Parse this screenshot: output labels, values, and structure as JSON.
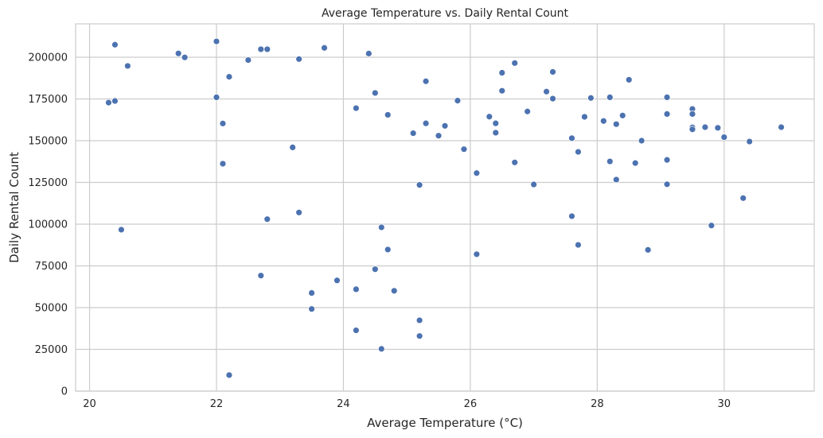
{
  "chart_data": {
    "type": "scatter",
    "title": "Average Temperature vs. Daily Rental Count",
    "xlabel": "Average Temperature (°C)",
    "ylabel": "Daily Rental Count",
    "xlim": [
      19.78,
      31.42
    ],
    "ylim": [
      0,
      220000
    ],
    "x_ticks": [
      20,
      22,
      24,
      26,
      28,
      30
    ],
    "y_ticks": [
      0,
      25000,
      50000,
      75000,
      100000,
      125000,
      150000,
      175000,
      200000
    ],
    "grid": true,
    "point_color": "#4c72b0",
    "points": [
      [
        20.3,
        172800
      ],
      [
        20.4,
        173800
      ],
      [
        20.4,
        207500
      ],
      [
        20.5,
        96700
      ],
      [
        20.6,
        194800
      ],
      [
        21.4,
        202300
      ],
      [
        21.5,
        199900
      ],
      [
        22.0,
        209500
      ],
      [
        22.0,
        176000
      ],
      [
        22.1,
        160300
      ],
      [
        22.1,
        136200
      ],
      [
        22.2,
        188300
      ],
      [
        22.2,
        9600
      ],
      [
        22.5,
        198300
      ],
      [
        22.7,
        204800
      ],
      [
        22.7,
        69200
      ],
      [
        22.8,
        204800
      ],
      [
        22.8,
        103000
      ],
      [
        23.2,
        146000
      ],
      [
        23.3,
        198900
      ],
      [
        23.3,
        107000
      ],
      [
        23.5,
        58800
      ],
      [
        23.5,
        49200
      ],
      [
        23.7,
        205600
      ],
      [
        23.9,
        66300
      ],
      [
        24.2,
        169500
      ],
      [
        24.2,
        61000
      ],
      [
        24.2,
        36400
      ],
      [
        24.4,
        202200
      ],
      [
        24.5,
        178600
      ],
      [
        24.5,
        73000
      ],
      [
        24.6,
        98100
      ],
      [
        24.6,
        25300
      ],
      [
        24.7,
        165500
      ],
      [
        24.7,
        84800
      ],
      [
        24.8,
        60100
      ],
      [
        25.1,
        154500
      ],
      [
        25.2,
        123500
      ],
      [
        25.2,
        42400
      ],
      [
        25.2,
        33000
      ],
      [
        25.3,
        185600
      ],
      [
        25.3,
        160400
      ],
      [
        25.5,
        153000
      ],
      [
        25.6,
        158900
      ],
      [
        25.8,
        174000
      ],
      [
        25.9,
        144900
      ],
      [
        26.1,
        130600
      ],
      [
        26.1,
        82000
      ],
      [
        26.3,
        164400
      ],
      [
        26.4,
        160400
      ],
      [
        26.4,
        154800
      ],
      [
        26.5,
        190700
      ],
      [
        26.5,
        179900
      ],
      [
        26.7,
        196500
      ],
      [
        26.7,
        137000
      ],
      [
        26.9,
        167500
      ],
      [
        27.0,
        123800
      ],
      [
        27.2,
        179400
      ],
      [
        27.3,
        191200
      ],
      [
        27.3,
        175200
      ],
      [
        27.6,
        151500
      ],
      [
        27.6,
        104800
      ],
      [
        27.7,
        143300
      ],
      [
        27.7,
        87600
      ],
      [
        27.8,
        164300
      ],
      [
        27.9,
        175600
      ],
      [
        28.1,
        161800
      ],
      [
        28.2,
        176000
      ],
      [
        28.2,
        137600
      ],
      [
        28.3,
        159900
      ],
      [
        28.3,
        126700
      ],
      [
        28.4,
        165100
      ],
      [
        28.5,
        186500
      ],
      [
        28.6,
        136600
      ],
      [
        28.7,
        150000
      ],
      [
        28.8,
        84600
      ],
      [
        29.1,
        176000
      ],
      [
        29.1,
        166000
      ],
      [
        29.1,
        138500
      ],
      [
        29.1,
        123900
      ],
      [
        29.5,
        169000
      ],
      [
        29.5,
        166000
      ],
      [
        29.5,
        158000
      ],
      [
        29.5,
        156800
      ],
      [
        29.7,
        158100
      ],
      [
        29.8,
        99200
      ],
      [
        29.9,
        157700
      ],
      [
        30.0,
        152100
      ],
      [
        30.3,
        115600
      ],
      [
        30.4,
        149500
      ],
      [
        30.9,
        158100
      ]
    ]
  }
}
